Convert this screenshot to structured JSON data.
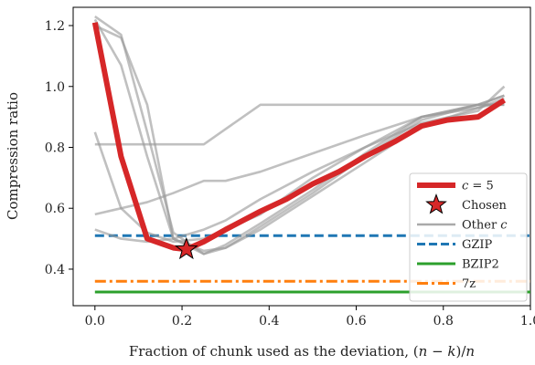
{
  "chart_data": {
    "type": "line",
    "xlabel": "Fraction of chunk used as the deviation, (n − k)/n",
    "ylabel": "Compression ratio",
    "xlim": [
      -0.05,
      1.0
    ],
    "ylim": [
      0.28,
      1.26
    ],
    "xticks": [
      0.0,
      0.2,
      0.4,
      0.6,
      0.8,
      1.0
    ],
    "xtick_labels": [
      "0.0",
      "0.2",
      "0.4",
      "0.6",
      "0.8",
      "1.0"
    ],
    "yticks": [
      0.4,
      0.6,
      0.8,
      1.0,
      1.2
    ],
    "ytick_labels": [
      "0.4",
      "0.6",
      "0.8",
      "1.0",
      "1.2"
    ],
    "grid": false,
    "legend_position": "lower-right",
    "baselines": [
      {
        "name": "GZIP",
        "value": 0.51,
        "color": "#1f77b4",
        "style": "dashed"
      },
      {
        "name": "BZIP2",
        "value": 0.325,
        "color": "#2ca02c",
        "style": "solid"
      },
      {
        "name": "7z",
        "value": 0.36,
        "color": "#ff7f0e",
        "style": "dashdot"
      }
    ],
    "other_c_series": [
      {
        "x": [
          0.0,
          0.06,
          0.12,
          0.18,
          0.25,
          0.3,
          0.38,
          0.5,
          0.62,
          0.75,
          0.88,
          0.94
        ],
        "y": [
          1.23,
          1.17,
          0.85,
          0.52,
          0.45,
          0.48,
          0.55,
          0.66,
          0.78,
          0.9,
          0.94,
          0.97
        ]
      },
      {
        "x": [
          0.0,
          0.06,
          0.12,
          0.18,
          0.25,
          0.3,
          0.38,
          0.5,
          0.62,
          0.75,
          0.88,
          0.94
        ],
        "y": [
          1.2,
          1.16,
          0.94,
          0.5,
          0.45,
          0.47,
          0.54,
          0.65,
          0.77,
          0.89,
          0.94,
          0.94
        ]
      },
      {
        "x": [
          0.0,
          0.06,
          0.12,
          0.18,
          0.25,
          0.3,
          0.38,
          0.5,
          0.62,
          0.75,
          0.88,
          0.94
        ],
        "y": [
          1.22,
          1.07,
          0.77,
          0.5,
          0.46,
          0.47,
          0.53,
          0.64,
          0.75,
          0.87,
          0.93,
          0.96
        ]
      },
      {
        "x": [
          0.0,
          0.06,
          0.12,
          0.18,
          0.25,
          0.3,
          0.38,
          0.5,
          0.62,
          0.75,
          0.88,
          0.94
        ],
        "y": [
          0.85,
          0.6,
          0.52,
          0.49,
          0.5,
          0.53,
          0.58,
          0.7,
          0.8,
          0.9,
          0.94,
          0.97
        ]
      },
      {
        "x": [
          0.0,
          0.06,
          0.12,
          0.18,
          0.25,
          0.3,
          0.38,
          0.5,
          0.62,
          0.75,
          0.88,
          0.94
        ],
        "y": [
          0.58,
          0.6,
          0.62,
          0.65,
          0.69,
          0.69,
          0.72,
          0.78,
          0.84,
          0.9,
          0.93,
          0.95
        ]
      },
      {
        "x": [
          0.0,
          0.06,
          0.12,
          0.18,
          0.25,
          0.3,
          0.38,
          0.5,
          0.62,
          0.75,
          0.88,
          0.94
        ],
        "y": [
          0.53,
          0.5,
          0.49,
          0.5,
          0.53,
          0.56,
          0.63,
          0.72,
          0.8,
          0.88,
          0.92,
          1.0
        ]
      },
      {
        "x": [
          0.0,
          0.06,
          0.12,
          0.18,
          0.25,
          0.3,
          0.38,
          0.5,
          0.62,
          0.75,
          0.88,
          0.94
        ],
        "y": [
          0.81,
          0.81,
          0.81,
          0.81,
          0.81,
          0.86,
          0.94,
          0.94,
          0.94,
          0.94,
          0.94,
          0.94
        ]
      }
    ],
    "series": [
      {
        "name": "c = 5",
        "color": "#d62728",
        "x": [
          0.0,
          0.06,
          0.12,
          0.18,
          0.21,
          0.25,
          0.3,
          0.38,
          0.44,
          0.5,
          0.56,
          0.62,
          0.69,
          0.75,
          0.81,
          0.88,
          0.94
        ],
        "y": [
          1.21,
          0.77,
          0.5,
          0.47,
          0.465,
          0.49,
          0.53,
          0.59,
          0.63,
          0.68,
          0.72,
          0.77,
          0.82,
          0.87,
          0.89,
          0.9,
          0.955
        ]
      }
    ],
    "chosen": {
      "name": "Chosen",
      "x": 0.21,
      "y": 0.465,
      "color": "#d62728"
    },
    "legend": [
      {
        "label_main": "c",
        "label_rest": " = 5",
        "kind": "thick-line",
        "color": "#d62728"
      },
      {
        "label_main": "Chosen",
        "label_rest": "",
        "kind": "star",
        "color": "#d62728"
      },
      {
        "label_main": "Other ",
        "label_rest": "c",
        "kind": "line",
        "color": "#aaaaaa"
      },
      {
        "label_main": "GZIP",
        "label_rest": "",
        "kind": "dashed",
        "color": "#1f77b4"
      },
      {
        "label_main": "BZIP2",
        "label_rest": "",
        "kind": "solid",
        "color": "#2ca02c"
      },
      {
        "label_main": "7z",
        "label_rest": "",
        "kind": "dashdot",
        "color": "#ff7f0e"
      }
    ]
  }
}
